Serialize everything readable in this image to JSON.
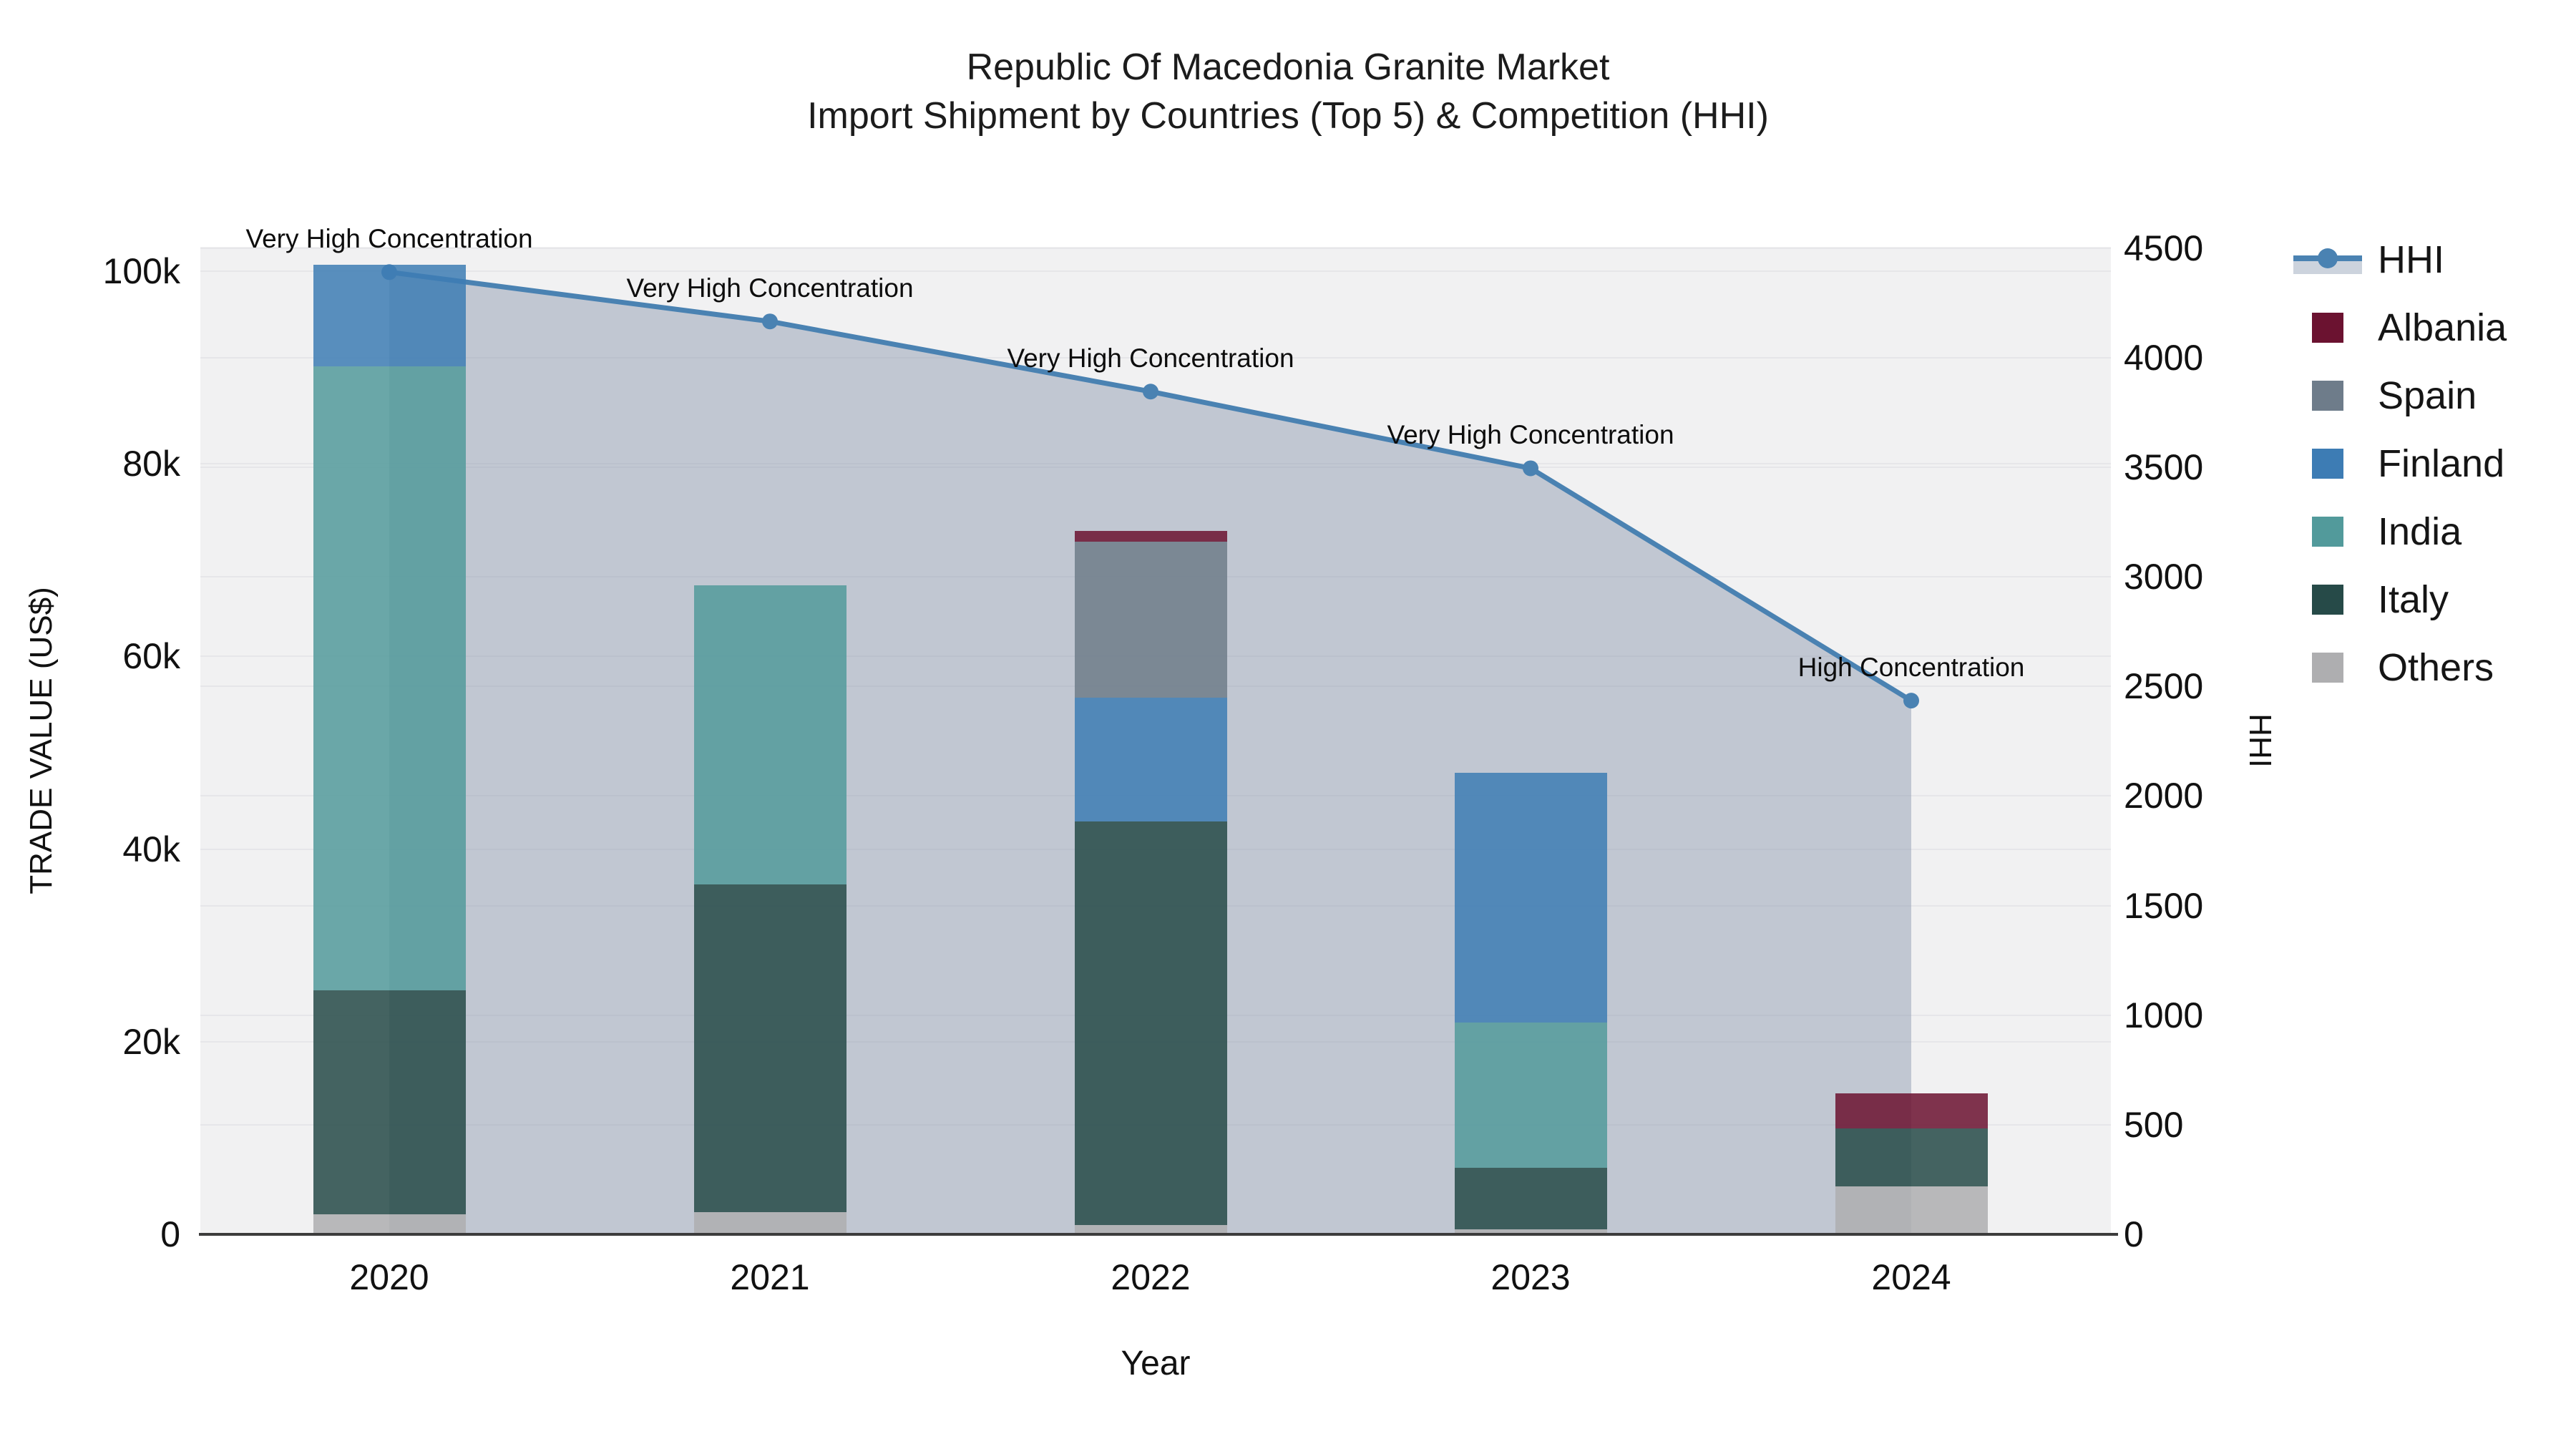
{
  "title": {
    "line1": "Republic Of Macedonia Granite Market",
    "line2": "Import Shipment by Countries (Top 5) & Competition (HHI)"
  },
  "chart_data": {
    "type": [
      "bar",
      "line"
    ],
    "title": "Republic Of Macedonia Granite Market — Import Shipment by Countries (Top 5) & Competition (HHI)",
    "xlabel": "Year",
    "ylabel_left": "TRADE VALUE (US$)",
    "ylabel_right": "HHI",
    "categories": [
      "2020",
      "2021",
      "2022",
      "2023",
      "2024"
    ],
    "series": [
      {
        "name": "Albania",
        "color": "#6b1230",
        "values": [
          0,
          0,
          1100,
          0,
          3600
        ]
      },
      {
        "name": "Spain",
        "color": "#6e7c8a",
        "values": [
          0,
          0,
          16200,
          0,
          0
        ]
      },
      {
        "name": "Finland",
        "color": "#3d7cb4",
        "values": [
          10600,
          0,
          12800,
          25900,
          0
        ]
      },
      {
        "name": "India",
        "color": "#529a9b",
        "values": [
          64800,
          31100,
          0,
          15100,
          0
        ]
      },
      {
        "name": "Italy",
        "color": "#264a48",
        "values": [
          23200,
          34000,
          41900,
          6400,
          6000
        ]
      },
      {
        "name": "Others",
        "color": "#aeaeb0",
        "values": [
          2100,
          2300,
          1000,
          500,
          5000
        ]
      }
    ],
    "hhi_series": {
      "name": "HHI",
      "color": "#4a82b2",
      "area_color": "rgba(136,149,171,0.45)",
      "values": [
        4390,
        4165,
        3845,
        3495,
        2435
      ]
    },
    "annotations": [
      {
        "year": "2020",
        "text": "Very High Concentration"
      },
      {
        "year": "2021",
        "text": "Very High Concentration"
      },
      {
        "year": "2022",
        "text": "Very High Concentration"
      },
      {
        "year": "2023",
        "text": "Very High Concentration"
      },
      {
        "year": "2024",
        "text": "High Concentration"
      }
    ],
    "left_axis": {
      "tick_labels": [
        "0",
        "20k",
        "40k",
        "60k",
        "80k",
        "100k"
      ],
      "tick_values": [
        0,
        20000,
        40000,
        60000,
        80000,
        100000
      ],
      "range": [
        0,
        102500
      ],
      "grid": true
    },
    "right_axis": {
      "tick_labels": [
        "0",
        "500",
        "1000",
        "1500",
        "2000",
        "2500",
        "3000",
        "3500",
        "4000",
        "4500"
      ],
      "tick_values": [
        0,
        500,
        1000,
        1500,
        2000,
        2500,
        3000,
        3500,
        4000,
        4500
      ],
      "range": [
        0,
        4502
      ],
      "grid": true
    },
    "legend_position": "right",
    "legend_items": [
      "HHI",
      "Albania",
      "Spain",
      "Finland",
      "India",
      "Italy",
      "Others"
    ]
  },
  "axis_titles": {
    "left": "TRADE VALUE (US$)",
    "right": "HHI",
    "bottom": "Year"
  }
}
